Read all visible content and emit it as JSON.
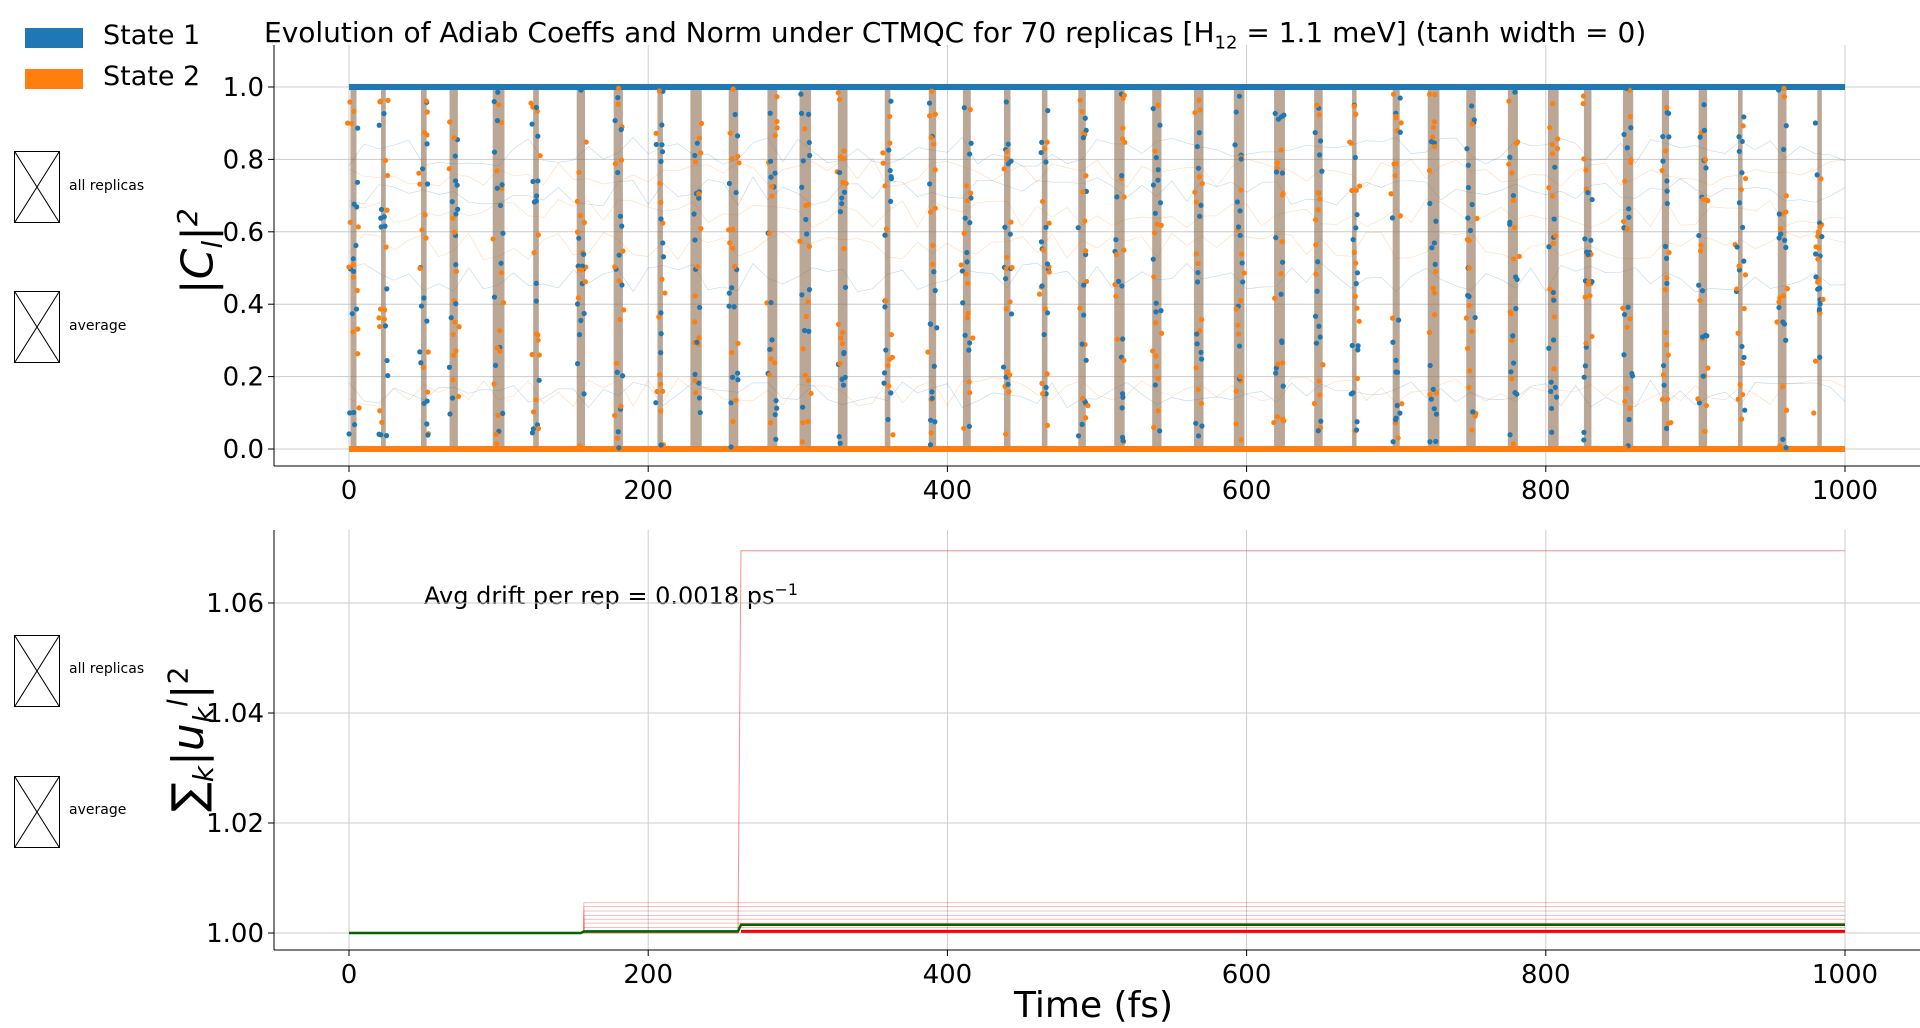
{
  "legend": {
    "items": [
      {
        "label": "State 1",
        "color": "#1f77b4"
      },
      {
        "label": "State 2",
        "color": "#ff7f0e"
      }
    ],
    "top_panel_toggles": [
      "all replicas",
      "average"
    ],
    "bottom_panel_toggles": [
      "all replicas",
      "average"
    ]
  },
  "title_main": "Evolution of Adiab Coeffs and Norm under CTMQC for 70 replicas [H",
  "title_sub": "12",
  "title_tail": " = 1.1 meV]   (tanh width = 0)",
  "annotation_main": "Avg drift per rep = 0.0018 ps",
  "annotation_sup": "−1",
  "chart_data": [
    {
      "type": "scatter",
      "ylabel": "|C_l|^2",
      "xlabel": "",
      "xlim": [
        -50,
        1030
      ],
      "ylim": [
        -0.04,
        1.1
      ],
      "xticks": [
        "0",
        "200",
        "400",
        "600",
        "800",
        "1000"
      ],
      "yticks": [
        "0.0",
        "0.2",
        "0.4",
        "0.6",
        "0.8",
        "1.0"
      ],
      "grid": true,
      "legend_position": "top-left",
      "series": [
        {
          "name": "State 1",
          "color": "#1f77b4"
        },
        {
          "name": "State 2",
          "color": "#ff7f0e"
        }
      ],
      "transition_times_fs": [
        3,
        23,
        50,
        70,
        100,
        125,
        155,
        180,
        208,
        232,
        257,
        283,
        305,
        330,
        360,
        390,
        413,
        440,
        465,
        490,
        515,
        540,
        568,
        595,
        622,
        648,
        672,
        700,
        725,
        750,
        778,
        805,
        828,
        855,
        880,
        905,
        930,
        958,
        983
      ]
    },
    {
      "type": "line",
      "ylabel": "Σ_k |u_k^l|^2",
      "xlabel": "Time (fs)",
      "xlim": [
        -50,
        1030
      ],
      "ylim": [
        0.997,
        1.073
      ],
      "xticks": [
        "0",
        "200",
        "400",
        "600",
        "800",
        "1000"
      ],
      "yticks": [
        "1.00",
        "1.02",
        "1.04",
        "1.06"
      ],
      "grid": true,
      "series": [
        {
          "name": "average",
          "color": "#006400",
          "points": [
            [
              0,
              1.0
            ],
            [
              155,
              1.0
            ],
            [
              157,
              1.0003
            ],
            [
              260,
              1.0003
            ],
            [
              262,
              1.0015
            ],
            [
              1000,
              1.0015
            ]
          ]
        },
        {
          "name": "replica max",
          "color": "#ff0000",
          "points": [
            [
              0,
              1.0
            ],
            [
              260,
              1.0
            ],
            [
              262,
              1.0695
            ],
            [
              1000,
              1.0695
            ]
          ]
        },
        {
          "name": "replica steps",
          "color": "#ff0000",
          "levels_at_157fs": [
            1.0055,
            1.0048,
            1.004,
            1.0032,
            1.0025,
            1.0018,
            1.001
          ]
        }
      ]
    }
  ]
}
